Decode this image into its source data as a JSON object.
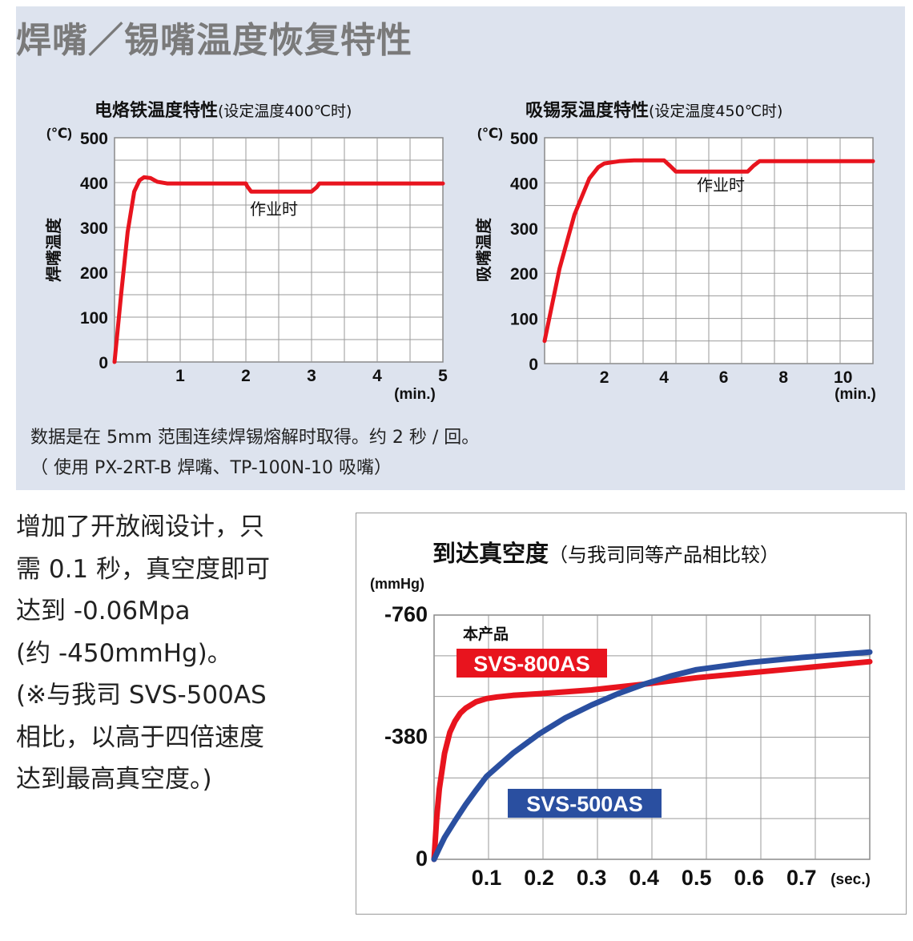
{
  "main_title": "焊嘴／锡嘴温度恢复特性",
  "note": {
    "line1": "数据是在 5mm 范围连续焊锡熔解时取得。约 2 秒 / 回。",
    "line2": "（ 使用 PX-2RT-B 焊嘴、TP-100N-10 吸嘴）"
  },
  "side_text": [
    "增加了开放阀设计，只",
    "需 0.1 秒，真空度即可",
    "达到 -0.06Mpa",
    "(约 -450mmHg)。",
    "(※与我司 SVS-500AS",
    "相比，以高于四倍速度",
    "达到最高真空度。)"
  ],
  "colors": {
    "red": "#e8141e",
    "blue": "#2a4fa0",
    "panel": "#dde3ee",
    "grid": "#9a9a9a"
  },
  "chart_data": [
    {
      "type": "line",
      "title": "电烙铁温度特性",
      "subtitle": "(设定温度400℃时)",
      "ylabel": "焊嘴温度",
      "yunit": "(℃)",
      "xunit": "(min.)",
      "xlim": [
        0,
        5
      ],
      "ylim": [
        0,
        500
      ],
      "xticks": [
        "1",
        "2",
        "3",
        "4",
        "5"
      ],
      "yticks": [
        "0",
        "100",
        "200",
        "300",
        "400",
        "500"
      ],
      "annotation": "作业时",
      "series": [
        {
          "color": "#e8141e",
          "x": [
            0,
            0.1,
            0.2,
            0.3,
            0.38,
            0.45,
            0.55,
            0.65,
            0.8,
            1.0,
            1.5,
            2.0,
            2.02,
            2.08,
            2.5,
            3.0,
            3.08,
            3.12,
            3.5,
            4.0,
            4.5,
            5.0
          ],
          "y": [
            0,
            150,
            290,
            380,
            405,
            412,
            410,
            402,
            398,
            398,
            398,
            398,
            392,
            380,
            380,
            380,
            390,
            398,
            398,
            398,
            398,
            398
          ]
        }
      ],
      "grid": true
    },
    {
      "type": "line",
      "title": "吸锡泵温度特性",
      "subtitle": "(设定温度450℃时)",
      "ylabel": "吸嘴温度",
      "yunit": "(℃)",
      "xunit": "(min.)",
      "xlim": [
        0,
        11
      ],
      "ylim": [
        0,
        500
      ],
      "xticks": [
        "2",
        "4",
        "6",
        "8",
        "10"
      ],
      "yticks": [
        "0",
        "100",
        "200",
        "300",
        "400",
        "500"
      ],
      "annotation": "作业时",
      "series": [
        {
          "color": "#e8141e",
          "x": [
            0,
            0.5,
            1.0,
            1.5,
            1.8,
            2.0,
            2.5,
            3.0,
            3.5,
            4.0,
            4.2,
            4.4,
            5.0,
            6.0,
            6.8,
            7.0,
            7.2,
            8.0,
            9.0,
            10.0,
            11.0
          ],
          "y": [
            50,
            210,
            330,
            410,
            435,
            443,
            448,
            450,
            450,
            450,
            438,
            425,
            425,
            425,
            425,
            438,
            448,
            448,
            448,
            448,
            448
          ]
        }
      ],
      "grid": true
    },
    {
      "type": "line",
      "title": "到达真空度",
      "subtitle": "（与我司同等产品相比较）",
      "yunit": "(mmHg)",
      "xunit": "(sec.)",
      "xlim": [
        0,
        0.83
      ],
      "ylim": [
        0,
        760
      ],
      "xticks": [
        "0.1",
        "0.2",
        "0.3",
        "0.4",
        "0.5",
        "0.6",
        "0.7"
      ],
      "yticks": [
        "0",
        "-380",
        "-760"
      ],
      "series_label_heading": "本产品",
      "series": [
        {
          "name": "SVS-800AS",
          "color": "#e8141e",
          "x": [
            0,
            0.005,
            0.01,
            0.02,
            0.03,
            0.04,
            0.05,
            0.06,
            0.08,
            0.1,
            0.12,
            0.15,
            0.2,
            0.3,
            0.4,
            0.5,
            0.6,
            0.7,
            0.83
          ],
          "y": [
            0,
            130,
            220,
            330,
            395,
            430,
            455,
            470,
            490,
            500,
            505,
            510,
            515,
            527,
            545,
            565,
            580,
            595,
            615
          ]
        },
        {
          "name": "SVS-500AS",
          "color": "#2a4fa0",
          "x": [
            0,
            0.01,
            0.02,
            0.04,
            0.06,
            0.08,
            0.1,
            0.15,
            0.2,
            0.25,
            0.3,
            0.35,
            0.4,
            0.45,
            0.5,
            0.6,
            0.7,
            0.83
          ],
          "y": [
            0,
            35,
            68,
            120,
            170,
            215,
            258,
            330,
            390,
            440,
            480,
            515,
            545,
            570,
            590,
            612,
            628,
            645
          ]
        }
      ],
      "grid": true
    }
  ]
}
